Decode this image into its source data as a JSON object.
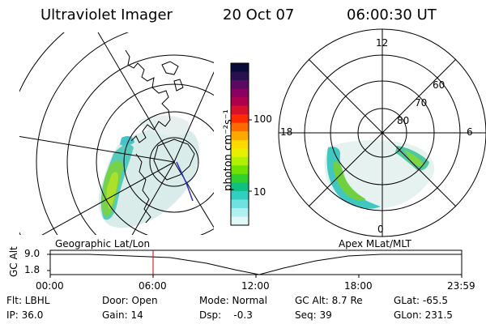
{
  "header": {
    "instrument": "Ultraviolet Imager",
    "date": "20 Oct 07",
    "time": "06:00:30 UT"
  },
  "colorbar": {
    "label": "photon cm⁻²s⁻¹",
    "ticks": [
      "100",
      "10"
    ],
    "colors": [
      "#0a0a3a",
      "#2a1050",
      "#5a0a60",
      "#8a0060",
      "#b0004a",
      "#d8102a",
      "#ff2a00",
      "#ff6a00",
      "#ffa800",
      "#ffd800",
      "#e8f000",
      "#b0f000",
      "#70e000",
      "#30d030",
      "#10c080",
      "#30d0c0",
      "#70e0e0",
      "#b0f0f0",
      "#e0f8f8"
    ]
  },
  "left_map": {
    "caption": "Geographic Lat/Lon"
  },
  "right_map": {
    "caption": "Apex MLat/MLT",
    "mlt_labels": {
      "top": "12",
      "left": "18",
      "right": "6",
      "bottom": "0"
    },
    "lat_labels": [
      "60",
      "70",
      "80"
    ]
  },
  "altitude_plot": {
    "ylabel": "GC Alt",
    "y_ticks": [
      "9.0",
      "1.8"
    ],
    "x_ticks": [
      "00:00",
      "06:00",
      "12:00",
      "18:00",
      "23:59"
    ],
    "marker_time": "06:00"
  },
  "info": {
    "row1": {
      "flt": "Flt: LBHL",
      "door": "Door: Open",
      "mode": "Mode: Normal",
      "gcalt": "GC Alt: 8.7 Re",
      "glat": "GLat: -65.5"
    },
    "row2": {
      "ip": "IP: 36.0",
      "gain": "Gain: 14",
      "dsp": "Dsp:    -0.3",
      "seq": "Seq: 39",
      "glon": "GLon: 231.5"
    }
  }
}
